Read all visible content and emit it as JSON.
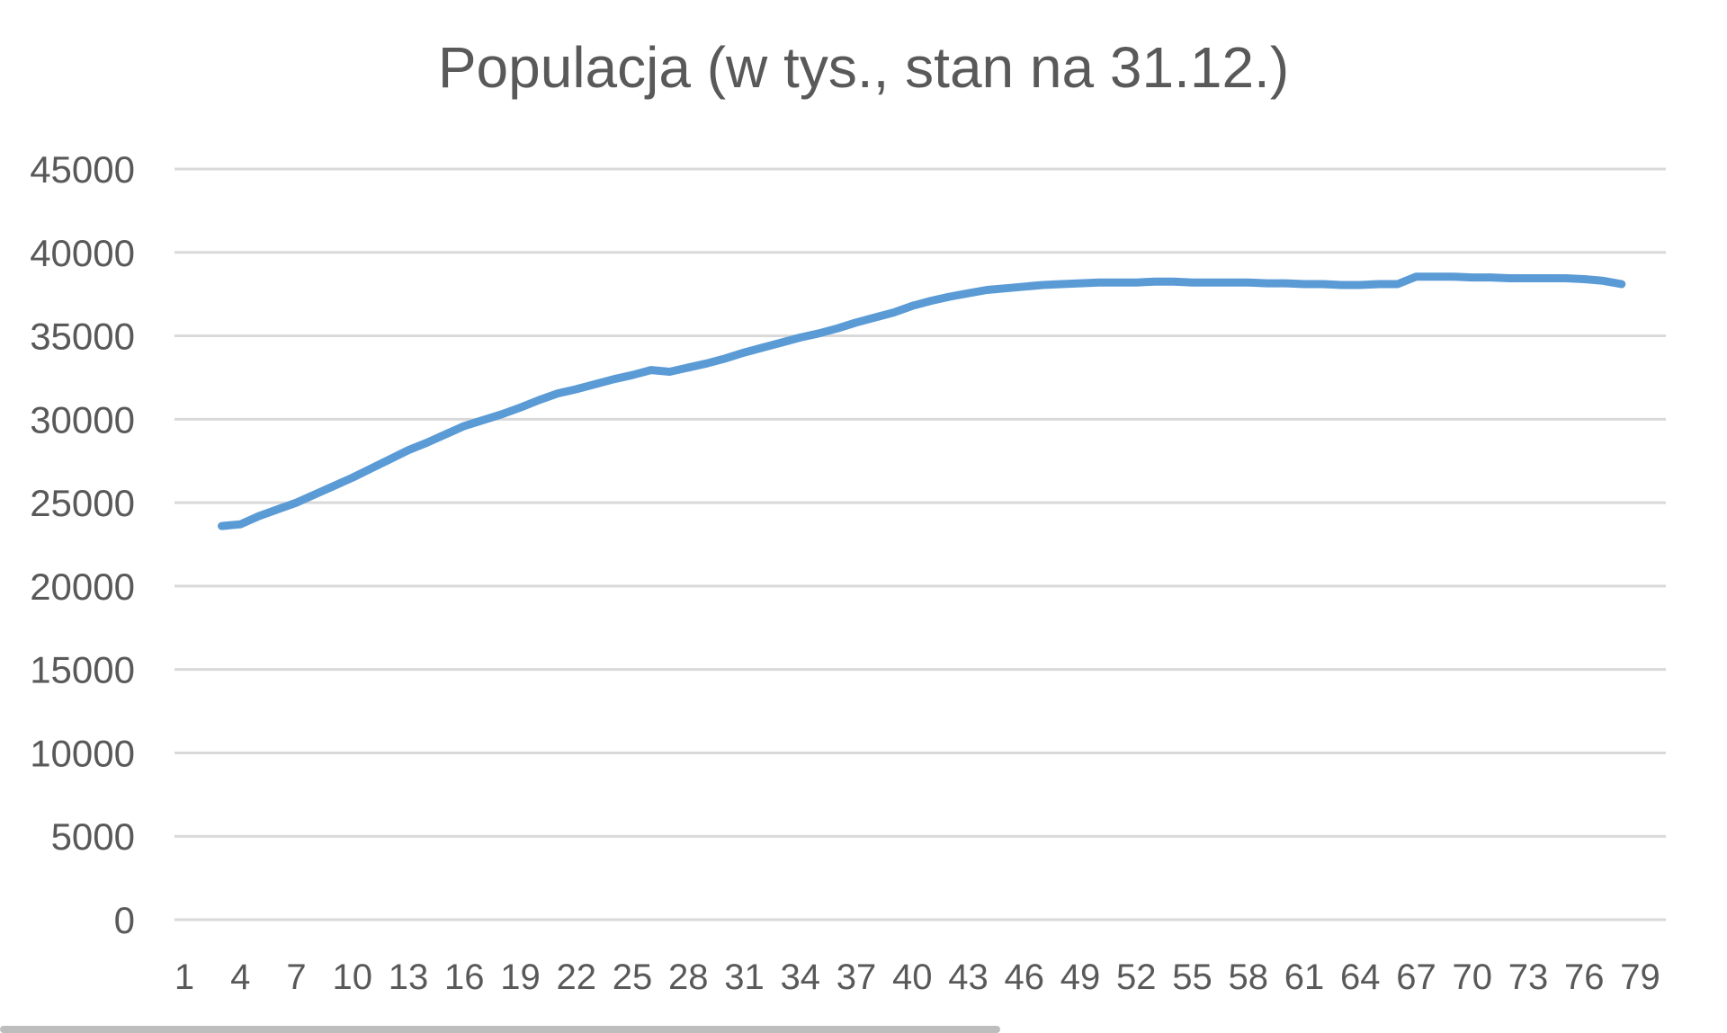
{
  "chart_data": {
    "type": "line",
    "title": "Populacja (w tys., stan na 31.12.)",
    "xlabel": "",
    "ylabel": "",
    "ylim": [
      0,
      45000
    ],
    "yticks": [
      "0",
      "5000",
      "10000",
      "15000",
      "20000",
      "25000",
      "30000",
      "35000",
      "40000",
      "45000"
    ],
    "xticks": [
      "1",
      "4",
      "7",
      "10",
      "13",
      "16",
      "19",
      "22",
      "25",
      "28",
      "31",
      "34",
      "37",
      "40",
      "43",
      "46",
      "49",
      "52",
      "55",
      "58",
      "61",
      "64",
      "67",
      "70",
      "73",
      "76",
      "79"
    ],
    "grid": true,
    "legend": "none",
    "line_color": "#5B9BD5",
    "series": [
      {
        "x": [
          3,
          4,
          5,
          6,
          7,
          8,
          9,
          10,
          11,
          12,
          13,
          14,
          15,
          16,
          17,
          18,
          19,
          20,
          21,
          22,
          23,
          24,
          25,
          26,
          27,
          28,
          29,
          30,
          31,
          32,
          33,
          34,
          35,
          36,
          37,
          38,
          39,
          40,
          41,
          42,
          43,
          44,
          45,
          46,
          47,
          48,
          49,
          50,
          51,
          52,
          53,
          54,
          55,
          56,
          57,
          58,
          59,
          60,
          61,
          62,
          63,
          64,
          65,
          66,
          67,
          68,
          69,
          70,
          71,
          72,
          73,
          74,
          75,
          76,
          77,
          78
        ],
        "values": [
          23600,
          23700,
          24200,
          24600,
          25000,
          25500,
          26000,
          26500,
          27050,
          27600,
          28150,
          28600,
          29100,
          29600,
          29950,
          30300,
          30700,
          31150,
          31550,
          31800,
          32100,
          32400,
          32650,
          32950,
          32850,
          33100,
          33350,
          33650,
          34000,
          34300,
          34600,
          34900,
          35150,
          35450,
          35800,
          36100,
          36400,
          36800,
          37100,
          37350,
          37550,
          37750,
          37850,
          37950,
          38050,
          38100,
          38150,
          38200,
          38200,
          38200,
          38250,
          38250,
          38200,
          38200,
          38200,
          38200,
          38150,
          38150,
          38100,
          38100,
          38050,
          38050,
          38100,
          38100,
          38550,
          38550,
          38550,
          38500,
          38500,
          38450,
          38450,
          38450,
          38450,
          38400,
          38300,
          38100
        ]
      }
    ]
  }
}
